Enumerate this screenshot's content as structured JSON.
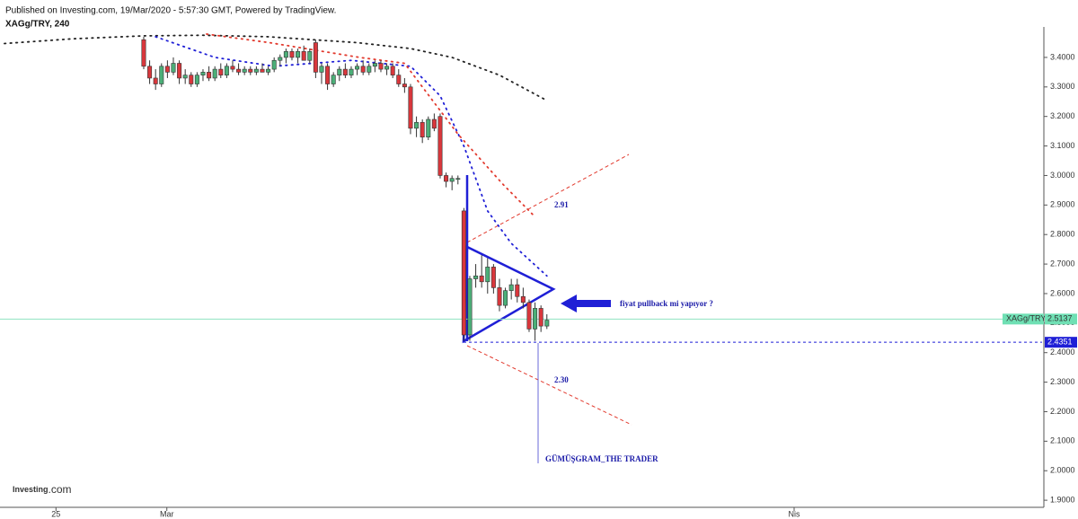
{
  "header": {
    "published": "Published on Investing.com, 19/Mar/2020 - 5:57:30 GMT, Powered by TradingView.",
    "symbol": "XAGg/TRY, 240"
  },
  "logo": {
    "brand": "Investing",
    "suffix": ".com"
  },
  "chart_data": {
    "type": "candlestick",
    "x": [
      0,
      1,
      2,
      3,
      4,
      5,
      6,
      7,
      8,
      9,
      10,
      11,
      12,
      13,
      14,
      15,
      16,
      17,
      18,
      19,
      20,
      21,
      22,
      23,
      24,
      25,
      26,
      27,
      28,
      29,
      30,
      31,
      32,
      33,
      34,
      35,
      36,
      37,
      38,
      39,
      40,
      41,
      42,
      43,
      44,
      45,
      46,
      47,
      48,
      49,
      50,
      51,
      52,
      53,
      54,
      55,
      56,
      57,
      58,
      59,
      60,
      61,
      62,
      63,
      64,
      65,
      66,
      67,
      68
    ],
    "ohlc": [
      [
        3.46,
        3.47,
        3.36,
        3.37
      ],
      [
        3.37,
        3.39,
        3.31,
        3.33
      ],
      [
        3.33,
        3.36,
        3.29,
        3.31
      ],
      [
        3.31,
        3.38,
        3.3,
        3.37
      ],
      [
        3.37,
        3.39,
        3.33,
        3.35
      ],
      [
        3.35,
        3.4,
        3.34,
        3.38
      ],
      [
        3.38,
        3.39,
        3.31,
        3.33
      ],
      [
        3.33,
        3.36,
        3.31,
        3.34
      ],
      [
        3.34,
        3.35,
        3.3,
        3.31
      ],
      [
        3.31,
        3.35,
        3.3,
        3.34
      ],
      [
        3.34,
        3.36,
        3.32,
        3.35
      ],
      [
        3.35,
        3.37,
        3.32,
        3.33
      ],
      [
        3.33,
        3.37,
        3.32,
        3.36
      ],
      [
        3.36,
        3.38,
        3.33,
        3.34
      ],
      [
        3.34,
        3.38,
        3.33,
        3.37
      ],
      [
        3.37,
        3.39,
        3.35,
        3.36
      ],
      [
        3.36,
        3.38,
        3.34,
        3.35
      ],
      [
        3.35,
        3.37,
        3.34,
        3.36
      ],
      [
        3.36,
        3.37,
        3.34,
        3.35
      ],
      [
        3.35,
        3.37,
        3.34,
        3.36
      ],
      [
        3.36,
        3.38,
        3.35,
        3.35
      ],
      [
        3.35,
        3.37,
        3.34,
        3.36
      ],
      [
        3.36,
        3.4,
        3.35,
        3.39
      ],
      [
        3.39,
        3.41,
        3.37,
        3.4
      ],
      [
        3.4,
        3.43,
        3.38,
        3.42
      ],
      [
        3.42,
        3.43,
        3.39,
        3.4
      ],
      [
        3.4,
        3.43,
        3.38,
        3.42
      ],
      [
        3.42,
        3.44,
        3.39,
        3.39
      ],
      [
        3.39,
        3.43,
        3.38,
        3.42
      ],
      [
        3.45,
        3.46,
        3.33,
        3.35
      ],
      [
        3.35,
        3.38,
        3.31,
        3.37
      ],
      [
        3.37,
        3.38,
        3.29,
        3.31
      ],
      [
        3.31,
        3.35,
        3.3,
        3.34
      ],
      [
        3.34,
        3.37,
        3.32,
        3.36
      ],
      [
        3.36,
        3.38,
        3.33,
        3.34
      ],
      [
        3.34,
        3.37,
        3.33,
        3.36
      ],
      [
        3.36,
        3.38,
        3.34,
        3.37
      ],
      [
        3.37,
        3.39,
        3.34,
        3.35
      ],
      [
        3.35,
        3.38,
        3.34,
        3.37
      ],
      [
        3.37,
        3.39,
        3.35,
        3.38
      ],
      [
        3.38,
        3.39,
        3.35,
        3.36
      ],
      [
        3.36,
        3.38,
        3.34,
        3.37
      ],
      [
        3.37,
        3.38,
        3.33,
        3.34
      ],
      [
        3.34,
        3.36,
        3.3,
        3.31
      ],
      [
        3.31,
        3.33,
        3.28,
        3.3
      ],
      [
        3.3,
        3.31,
        3.14,
        3.16
      ],
      [
        3.16,
        3.2,
        3.13,
        3.18
      ],
      [
        3.18,
        3.19,
        3.11,
        3.13
      ],
      [
        3.13,
        3.2,
        3.12,
        3.19
      ],
      [
        3.19,
        3.21,
        3.15,
        3.16
      ],
      [
        3.2,
        3.21,
        2.99,
        3.0
      ],
      [
        3.0,
        3.01,
        2.96,
        2.98
      ],
      [
        2.98,
        3.0,
        2.95,
        2.99
      ],
      [
        2.99,
        3.0,
        2.97,
        2.99
      ],
      [
        2.88,
        2.89,
        2.44,
        2.46
      ],
      [
        2.46,
        2.66,
        2.44,
        2.65
      ],
      [
        2.65,
        2.7,
        2.62,
        2.66
      ],
      [
        2.66,
        2.73,
        2.62,
        2.64
      ],
      [
        2.64,
        2.72,
        2.6,
        2.69
      ],
      [
        2.69,
        2.7,
        2.6,
        2.62
      ],
      [
        2.62,
        2.65,
        2.54,
        2.56
      ],
      [
        2.56,
        2.62,
        2.55,
        2.61
      ],
      [
        2.61,
        2.65,
        2.58,
        2.63
      ],
      [
        2.63,
        2.65,
        2.57,
        2.59
      ],
      [
        2.59,
        2.62,
        2.55,
        2.57
      ],
      [
        2.57,
        2.58,
        2.47,
        2.48
      ],
      [
        2.48,
        2.57,
        2.44,
        2.55
      ],
      [
        2.55,
        2.56,
        2.47,
        2.49
      ],
      [
        2.49,
        2.53,
        2.48,
        2.51
      ]
    ],
    "up_color": "#4caf78",
    "down_color": "#d9373c",
    "overlays": [
      {
        "color": "#222222",
        "x": [
          -23.5,
          -12,
          0,
          10,
          21,
          36,
          45,
          52,
          60,
          68
        ],
        "values": [
          3.447,
          3.463,
          3.473,
          3.475,
          3.47,
          3.45,
          3.43,
          3.4,
          3.34,
          3.254
        ]
      },
      {
        "color": "#1f1fd6",
        "x": [
          2,
          12,
          22,
          35,
          45,
          50,
          54,
          58,
          62,
          68
        ],
        "values": [
          3.47,
          3.4,
          3.37,
          3.39,
          3.37,
          3.27,
          3.1,
          2.88,
          2.77,
          2.66
        ]
      },
      {
        "color": "#e23a2e",
        "x": [
          10.6,
          21.2,
          36.4,
          44,
          48.5,
          53,
          60.6,
          66
        ],
        "values": [
          3.479,
          3.45,
          3.4,
          3.38,
          3.26,
          3.14,
          2.97,
          2.86
        ]
      }
    ],
    "last_price": 2.5137,
    "last_price_tag": "XAGg/TRY",
    "support": 2.4351,
    "annotations": [
      "2.91",
      "2.30",
      "fiyat pullback mi yapıyor ?",
      "GÜMÜŞGRAM_THE TRADER"
    ],
    "xlim": [
      -24.24,
      151.52
    ],
    "xticks": [
      {
        "value": -14.8,
        "label": "25"
      },
      {
        "value": 3.9,
        "label": "Mar"
      },
      {
        "value": 109.7,
        "label": "Nis"
      }
    ],
    "ylim": [
      1.876,
      3.488
    ],
    "yticks": [
      {
        "value": 1.9,
        "label": "1.9000"
      },
      {
        "value": 2.0,
        "label": "2.0000"
      },
      {
        "value": 2.1,
        "label": "2.1000"
      },
      {
        "value": 2.2,
        "label": "2.2000"
      },
      {
        "value": 2.3,
        "label": "2.3000"
      },
      {
        "value": 2.4,
        "label": "2.4000"
      },
      {
        "value": 2.5,
        "label": "2.5000"
      },
      {
        "value": 2.6,
        "label": "2.6000"
      },
      {
        "value": 2.7,
        "label": "2.7000"
      },
      {
        "value": 2.8,
        "label": "2.8000"
      },
      {
        "value": 2.9,
        "label": "2.9000"
      },
      {
        "value": 3.0,
        "label": "3.0000"
      },
      {
        "value": 3.1,
        "label": "3.1000"
      },
      {
        "value": 3.2,
        "label": "3.2000"
      },
      {
        "value": 3.3,
        "label": "3.3000"
      },
      {
        "value": 3.4,
        "label": "3.4000"
      }
    ]
  }
}
